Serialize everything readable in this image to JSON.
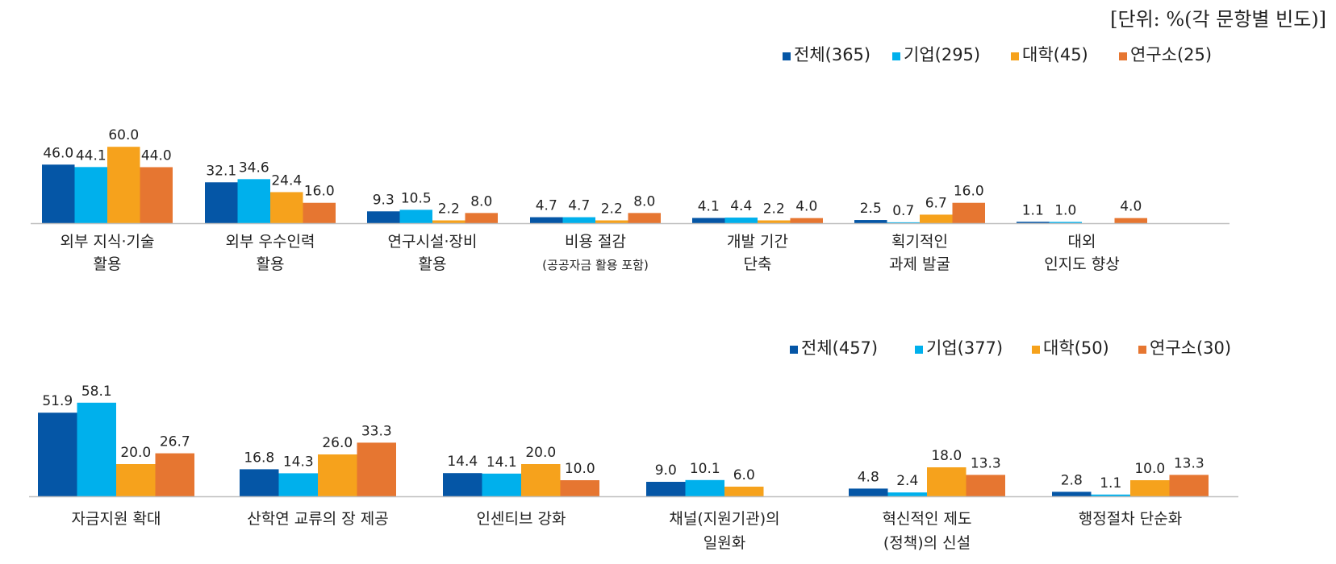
{
  "unit_note": "[단위: %(각 문항별 빈도)]",
  "colors": {
    "all": "#0556a6",
    "company": "#00b0ec",
    "university": "#f6a21c",
    "institute": "#e67631",
    "axis": "#bfbfbf"
  },
  "chart_data": [
    {
      "type": "bar",
      "legend": [
        "전체(365)",
        "기업(295)",
        "대학(45)",
        "연구소(25)"
      ],
      "categories": [
        [
          "외부 지식·기술",
          "활용"
        ],
        [
          "외부 우수인력",
          "활용"
        ],
        [
          "연구시설·장비",
          "활용"
        ],
        [
          "비용 절감",
          "(공공자금 활용 포함)"
        ],
        [
          "개발 기간",
          "단축"
        ],
        [
          "획기적인",
          "과제 발굴"
        ],
        [
          "대외",
          "인지도 향상"
        ]
      ],
      "series": [
        {
          "name": "전체(365)",
          "values": [
            46.0,
            32.1,
            9.3,
            4.7,
            4.1,
            2.5,
            1.1
          ]
        },
        {
          "name": "기업(295)",
          "values": [
            44.1,
            34.6,
            10.5,
            4.7,
            4.4,
            0.7,
            1.0
          ]
        },
        {
          "name": "대학(45)",
          "values": [
            60.0,
            24.4,
            2.2,
            2.2,
            2.2,
            6.7,
            0
          ]
        },
        {
          "name": "연구소(25)",
          "values": [
            44.0,
            16.0,
            8.0,
            8.0,
            4.0,
            16.0,
            4.0
          ]
        }
      ],
      "labels": [
        [
          "46.0",
          "32.1",
          "9.3",
          "4.7",
          "4.1",
          "2.5",
          "1.1"
        ],
        [
          "44.1",
          "34.6",
          "10.5",
          "4.7",
          "4.4",
          "0.7",
          "1.0"
        ],
        [
          "60.0",
          "24.4",
          "2.2",
          "2.2",
          "2.2",
          "6.7",
          ""
        ],
        [
          "44.0",
          "16.0",
          "8.0",
          "8.0",
          "4.0",
          "16.0",
          "4.0"
        ]
      ],
      "ylim": [
        0,
        60
      ],
      "legend_position": "top-right"
    },
    {
      "type": "bar",
      "legend": [
        "전체(457)",
        "기업(377)",
        "대학(50)",
        "연구소(30)"
      ],
      "categories": [
        [
          "자금지원 확대"
        ],
        [
          "산학연 교류의 장 제공"
        ],
        [
          "인센티브 강화"
        ],
        [
          "채널(지원기관)의",
          "일원화"
        ],
        [
          "혁신적인 제도",
          "(정책)의 신설"
        ],
        [
          "행정절차 단순화"
        ]
      ],
      "series": [
        {
          "name": "전체(457)",
          "values": [
            51.9,
            16.8,
            14.4,
            9.0,
            4.8,
            2.8
          ]
        },
        {
          "name": "기업(377)",
          "values": [
            58.1,
            14.3,
            14.1,
            10.1,
            2.4,
            1.1
          ]
        },
        {
          "name": "대학(50)",
          "values": [
            20.0,
            26.0,
            20.0,
            6.0,
            18.0,
            10.0
          ]
        },
        {
          "name": "연구소(30)",
          "values": [
            26.7,
            33.3,
            10.0,
            0,
            13.3,
            13.3
          ]
        }
      ],
      "labels": [
        [
          "51.9",
          "16.8",
          "14.4",
          "9.0",
          "4.8",
          "2.8"
        ],
        [
          "58.1",
          "14.3",
          "14.1",
          "10.1",
          "2.4",
          "1.1"
        ],
        [
          "20.0",
          "26.0",
          "20.0",
          "6.0",
          "18.0",
          "10.0"
        ],
        [
          "26.7",
          "33.3",
          "10.0",
          "",
          "13.3",
          "13.3"
        ]
      ],
      "ylim": [
        0,
        60
      ],
      "legend_position": "top-right"
    }
  ]
}
